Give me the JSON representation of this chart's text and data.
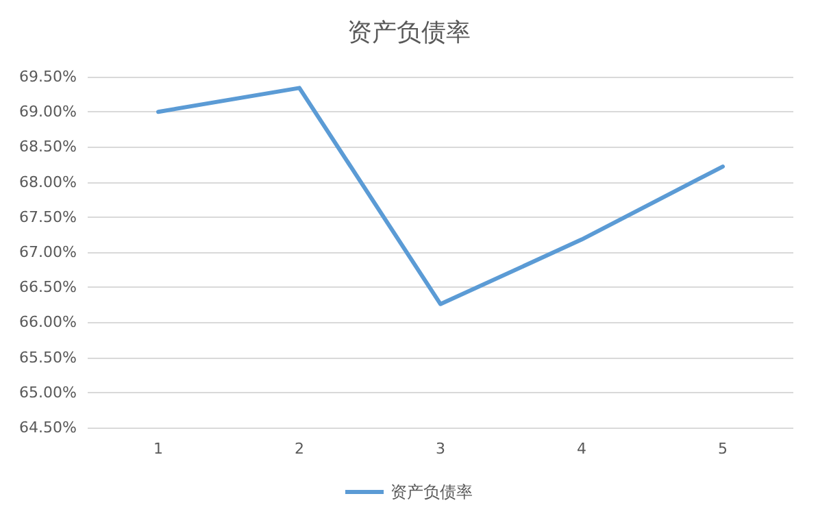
{
  "chart_data": {
    "type": "line",
    "title": "资产负债率",
    "categories": [
      "1",
      "2",
      "3",
      "4",
      "5"
    ],
    "series": [
      {
        "name": "资产负债率",
        "color": "#5b9bd5",
        "values": [
          69.0,
          69.34,
          66.26,
          67.18,
          68.22
        ]
      }
    ],
    "ylim": [
      64.5,
      69.5
    ],
    "yticks": [
      {
        "value": 64.5,
        "label": "64.50%"
      },
      {
        "value": 65,
        "label": "65.00%"
      },
      {
        "value": 65.5,
        "label": "65.50%"
      },
      {
        "value": 66,
        "label": "66.00%"
      },
      {
        "value": 66.5,
        "label": "66.50%"
      },
      {
        "value": 67,
        "label": "67.00%"
      },
      {
        "value": 67.5,
        "label": "67.50%"
      },
      {
        "value": 68,
        "label": "68.00%"
      },
      {
        "value": 68.5,
        "label": "68.50%"
      },
      {
        "value": 69,
        "label": "69.00%"
      },
      {
        "value": 69.5,
        "label": "69.50%"
      }
    ],
    "grid": "y",
    "legend": "bottom",
    "marker": "none",
    "line_style": "solid"
  }
}
